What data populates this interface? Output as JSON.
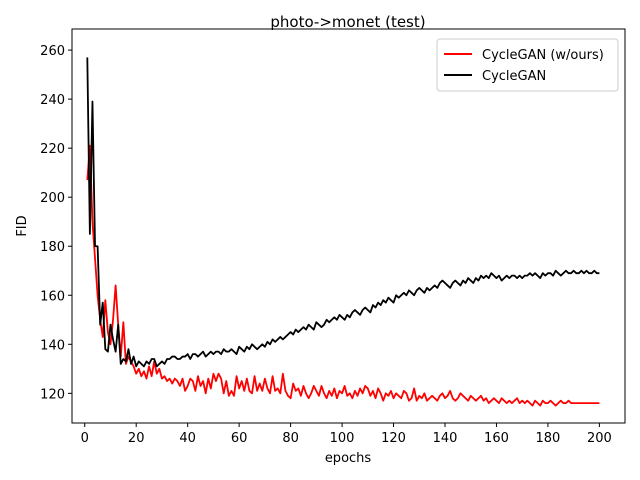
{
  "chart_data": {
    "type": "line",
    "title": "photo->monet (test)",
    "xlabel": "epochs",
    "ylabel": "FID",
    "xlim": [
      -4.95,
      209.95
    ],
    "ylim": [
      107.9,
      268.6
    ],
    "xticks": [
      0,
      20,
      40,
      60,
      80,
      100,
      120,
      140,
      160,
      180,
      200
    ],
    "yticks": [
      120,
      140,
      160,
      180,
      200,
      220,
      240,
      260
    ],
    "grid": false,
    "legend_position": "top-right",
    "series": [
      {
        "name": "CycleGAN (w/ours)",
        "color": "#ff0000",
        "x": [
          1,
          2,
          3,
          4,
          5,
          6,
          7,
          8,
          9,
          10,
          11,
          12,
          13,
          14,
          15,
          16,
          17,
          18,
          19,
          20,
          21,
          22,
          23,
          24,
          25,
          26,
          27,
          28,
          29,
          30,
          31,
          32,
          33,
          34,
          35,
          36,
          37,
          38,
          39,
          40,
          41,
          42,
          43,
          44,
          45,
          46,
          47,
          48,
          49,
          50,
          51,
          52,
          53,
          54,
          55,
          56,
          57,
          58,
          59,
          60,
          61,
          62,
          63,
          64,
          65,
          66,
          67,
          68,
          69,
          70,
          71,
          72,
          73,
          74,
          75,
          76,
          77,
          78,
          79,
          80,
          81,
          82,
          83,
          84,
          85,
          86,
          87,
          88,
          89,
          90,
          91,
          92,
          93,
          94,
          95,
          96,
          97,
          98,
          99,
          100,
          101,
          102,
          103,
          104,
          105,
          106,
          107,
          108,
          109,
          110,
          111,
          112,
          113,
          114,
          115,
          116,
          117,
          118,
          119,
          120,
          121,
          122,
          123,
          124,
          125,
          126,
          127,
          128,
          129,
          130,
          131,
          132,
          133,
          134,
          135,
          136,
          137,
          138,
          139,
          140,
          141,
          142,
          143,
          144,
          145,
          146,
          147,
          148,
          149,
          150,
          151,
          152,
          153,
          154,
          155,
          156,
          157,
          158,
          159,
          160,
          161,
          162,
          163,
          164,
          165,
          166,
          167,
          168,
          169,
          170,
          171,
          172,
          173,
          174,
          175,
          176,
          177,
          178,
          179,
          180,
          181,
          182,
          183,
          184,
          185,
          186,
          187,
          188,
          189,
          190,
          191,
          192,
          193,
          194,
          195,
          196,
          197,
          198,
          199,
          200
        ],
        "y": [
          207,
          221,
          190,
          175,
          160,
          150,
          143,
          158,
          145,
          140,
          150,
          164,
          148,
          135,
          149,
          132,
          135,
          133,
          131,
          128,
          130,
          127,
          129,
          126,
          131,
          127,
          133,
          128,
          130,
          126,
          127,
          125,
          126,
          124,
          126,
          125,
          123,
          126,
          121,
          123,
          126,
          125,
          121,
          127,
          123,
          125,
          120,
          126,
          122,
          128,
          125,
          128,
          126,
          120,
          125,
          119,
          121,
          119,
          127,
          122,
          125,
          121,
          126,
          121,
          120,
          127,
          121,
          124,
          121,
          126,
          122,
          120,
          127,
          121,
          122,
          120,
          128,
          121,
          119,
          118,
          124,
          121,
          122,
          119,
          123,
          120,
          118,
          120,
          123,
          121,
          119,
          123,
          120,
          118,
          121,
          119,
          122,
          118,
          121,
          120,
          123,
          119,
          120,
          118,
          121,
          119,
          122,
          120,
          123,
          122,
          119,
          121,
          118,
          122,
          120,
          117,
          120,
          119,
          121,
          118,
          120,
          119,
          118,
          121,
          120,
          117,
          118,
          122,
          117,
          119,
          118,
          120,
          117,
          118,
          119,
          118,
          117,
          119,
          120,
          118,
          119,
          121,
          118,
          117,
          118,
          120,
          119,
          118,
          117,
          119,
          118,
          117,
          118,
          119,
          117,
          118,
          116,
          117,
          118,
          117,
          116,
          118,
          117,
          116,
          117,
          116,
          117,
          118,
          116,
          117,
          116,
          117,
          116,
          115,
          117,
          116,
          115,
          117,
          116,
          116,
          117,
          116,
          115,
          116,
          117,
          116,
          116,
          117,
          116,
          116,
          116,
          116,
          116,
          116,
          116,
          116,
          116,
          116,
          116,
          116
        ]
      },
      {
        "name": "CycleGAN",
        "color": "#000000",
        "x": [
          1,
          2,
          3,
          4,
          5,
          6,
          7,
          8,
          9,
          10,
          11,
          12,
          13,
          14,
          15,
          16,
          17,
          18,
          19,
          20,
          21,
          22,
          23,
          24,
          25,
          26,
          27,
          28,
          29,
          30,
          31,
          32,
          33,
          34,
          35,
          36,
          37,
          38,
          39,
          40,
          41,
          42,
          43,
          44,
          45,
          46,
          47,
          48,
          49,
          50,
          51,
          52,
          53,
          54,
          55,
          56,
          57,
          58,
          59,
          60,
          61,
          62,
          63,
          64,
          65,
          66,
          67,
          68,
          69,
          70,
          71,
          72,
          73,
          74,
          75,
          76,
          77,
          78,
          79,
          80,
          81,
          82,
          83,
          84,
          85,
          86,
          87,
          88,
          89,
          90,
          91,
          92,
          93,
          94,
          95,
          96,
          97,
          98,
          99,
          100,
          101,
          102,
          103,
          104,
          105,
          106,
          107,
          108,
          109,
          110,
          111,
          112,
          113,
          114,
          115,
          116,
          117,
          118,
          119,
          120,
          121,
          122,
          123,
          124,
          125,
          126,
          127,
          128,
          129,
          130,
          131,
          132,
          133,
          134,
          135,
          136,
          137,
          138,
          139,
          140,
          141,
          142,
          143,
          144,
          145,
          146,
          147,
          148,
          149,
          150,
          151,
          152,
          153,
          154,
          155,
          156,
          157,
          158,
          159,
          160,
          161,
          162,
          163,
          164,
          165,
          166,
          167,
          168,
          169,
          170,
          171,
          172,
          173,
          174,
          175,
          176,
          177,
          178,
          179,
          180,
          181,
          182,
          183,
          184,
          185,
          186,
          187,
          188,
          189,
          190,
          191,
          192,
          193,
          194,
          195,
          196,
          197,
          198,
          199,
          200
        ],
        "y": [
          257,
          185,
          239,
          180,
          180,
          148,
          157,
          138,
          137,
          148,
          142,
          137,
          148,
          132,
          134,
          133,
          138,
          132,
          135,
          131,
          133,
          132,
          131,
          133,
          132,
          134,
          134,
          131,
          132,
          133,
          132,
          134,
          134,
          135,
          135,
          134,
          134,
          135,
          135,
          136,
          134,
          136,
          136,
          135,
          136,
          137,
          135,
          136,
          137,
          136,
          137,
          137,
          136,
          138,
          137,
          137,
          138,
          137,
          136,
          139,
          138,
          137,
          139,
          138,
          140,
          139,
          138,
          139,
          140,
          139,
          141,
          140,
          142,
          141,
          142,
          143,
          142,
          143,
          144,
          145,
          144,
          146,
          145,
          146,
          147,
          146,
          148,
          147,
          146,
          149,
          148,
          147,
          148,
          150,
          149,
          150,
          151,
          150,
          152,
          151,
          150,
          152,
          151,
          153,
          154,
          153,
          152,
          154,
          155,
          154,
          153,
          156,
          155,
          157,
          156,
          158,
          157,
          159,
          158,
          157,
          160,
          159,
          160,
          161,
          160,
          162,
          161,
          160,
          162,
          163,
          162,
          161,
          163,
          162,
          163,
          164,
          163,
          165,
          166,
          165,
          164,
          163,
          165,
          166,
          165,
          164,
          166,
          165,
          167,
          166,
          165,
          167,
          166,
          168,
          167,
          168,
          167,
          169,
          168,
          167,
          168,
          166,
          167,
          168,
          167,
          168,
          168,
          167,
          168,
          167,
          168,
          168,
          169,
          168,
          169,
          168,
          167,
          169,
          168,
          169,
          169,
          168,
          170,
          169,
          168,
          169,
          170,
          169,
          169,
          170,
          169,
          169,
          170,
          169,
          170,
          169,
          169,
          170,
          169,
          169
        ]
      }
    ]
  }
}
